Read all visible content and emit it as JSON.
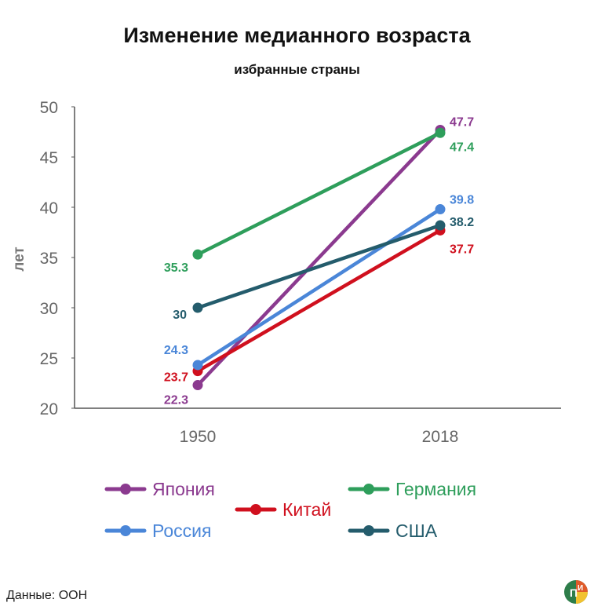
{
  "chart_data": {
    "type": "line",
    "title": "Изменение медианного возраста",
    "subtitle": "избранные страны",
    "xlabel": "",
    "ylabel": "лет",
    "x": [
      "1950",
      "2018"
    ],
    "ylim": [
      20,
      50
    ],
    "yticks": [
      "20",
      "25",
      "30",
      "35",
      "40",
      "45",
      "50"
    ],
    "grid": false,
    "series": [
      {
        "name": "Япония",
        "color": "#8b3a8f",
        "values": [
          22.3,
          47.7
        ],
        "labels": [
          "22.3",
          "47.7"
        ]
      },
      {
        "name": "Германия",
        "color": "#2e9e5b",
        "values": [
          35.3,
          47.4
        ],
        "labels": [
          "35.3",
          "47.4"
        ]
      },
      {
        "name": "Китай",
        "color": "#d0101e",
        "values": [
          23.7,
          37.7
        ],
        "labels": [
          "23.7",
          "37.7"
        ]
      },
      {
        "name": "Россия",
        "color": "#4a86d8",
        "values": [
          24.3,
          39.8
        ],
        "labels": [
          "24.3",
          "39.8"
        ]
      },
      {
        "name": "США",
        "color": "#245c6c",
        "values": [
          30,
          38.2
        ],
        "labels": [
          "30",
          "38.2"
        ]
      }
    ]
  },
  "footer": {
    "source": "Данные: ООН",
    "logo_icon": "pi-logo-icon",
    "logo_text": "П И"
  }
}
